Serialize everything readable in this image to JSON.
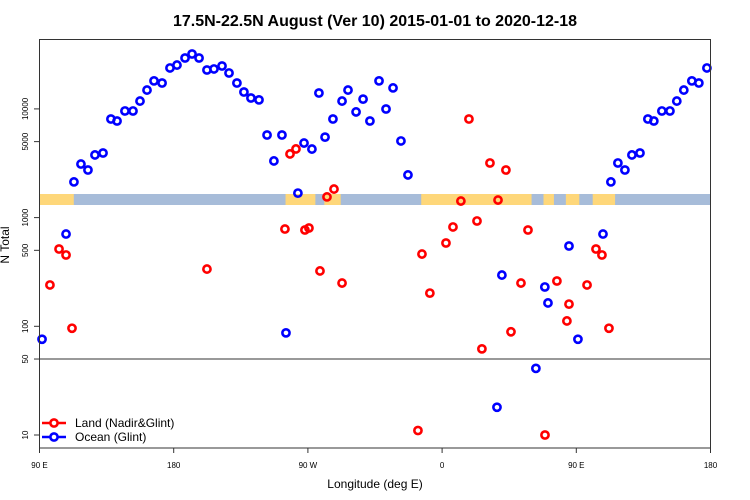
{
  "chart_data": {
    "type": "scatter",
    "title": "17.5N-22.5N August (Ver 10)   2015-01-01 to 2020-12-18",
    "xlabel": "Longitude (deg E)",
    "ylabel": "N Total",
    "x_note": "longitude unwrapped eastward from 90E",
    "xlim": [
      90,
      540
    ],
    "x_ticks": [
      {
        "value": 90,
        "label": "90 E"
      },
      {
        "value": 180,
        "label": "180"
      },
      {
        "value": 270,
        "label": "90 W"
      },
      {
        "value": 360,
        "label": "0"
      },
      {
        "value": 450,
        "label": "90 E"
      },
      {
        "value": 540,
        "label": "180"
      }
    ],
    "yscale": "log",
    "ylim": [
      7.6,
      43600
    ],
    "y_ticks": [
      {
        "value": 10000,
        "label": "10000"
      },
      {
        "value": 5000,
        "label": "5000"
      },
      {
        "value": 1000,
        "label": "1000"
      },
      {
        "value": 500,
        "label": "500"
      },
      {
        "value": 100,
        "label": "100"
      },
      {
        "value": 50,
        "label": "50"
      },
      {
        "value": 10,
        "label": "10"
      }
    ],
    "reference_line_y": 50,
    "legend_position": "bottom-left",
    "series": [
      {
        "name": "Land (Nadir&Glint)",
        "color": "#ff0000",
        "points": [
          [
            103.1,
            514
          ],
          [
            107.8,
            453
          ],
          [
            97.0,
            240
          ],
          [
            111.8,
            96
          ],
          [
            202.3,
            336
          ],
          [
            254.6,
            785
          ],
          [
            268.0,
            769
          ],
          [
            270.7,
            802
          ],
          [
            278.1,
            323
          ],
          [
            292.9,
            250
          ],
          [
            258.0,
            3850
          ],
          [
            262.0,
            4280
          ],
          [
            282.8,
            1550
          ],
          [
            287.5,
            1830
          ],
          [
            343.8,
            11
          ],
          [
            346.5,
            462
          ],
          [
            351.8,
            202
          ],
          [
            362.6,
            584
          ],
          [
            367.3,
            820
          ],
          [
            372.6,
            1420
          ],
          [
            378.0,
            8070
          ],
          [
            383.4,
            931
          ],
          [
            386.7,
            62
          ],
          [
            392.1,
            3180
          ],
          [
            397.5,
            1450
          ],
          [
            402.8,
            2740
          ],
          [
            406.2,
            89
          ],
          [
            412.9,
            250
          ],
          [
            417.6,
            769
          ],
          [
            429.0,
            10
          ],
          [
            437.0,
            261
          ],
          [
            443.7,
            112
          ],
          [
            445.1,
            160
          ],
          [
            457.2,
            240
          ],
          [
            463.2,
            514
          ],
          [
            467.2,
            453
          ],
          [
            471.9,
            96
          ]
        ]
      },
      {
        "name": "Ocean (Glint)",
        "color": "#0000ff",
        "points": [
          [
            113.1,
            2130
          ],
          [
            117.8,
            3110
          ],
          [
            122.5,
            2740
          ],
          [
            127.2,
            3770
          ],
          [
            132.6,
            3930
          ],
          [
            137.9,
            8070
          ],
          [
            142.0,
            7740
          ],
          [
            147.3,
            9570
          ],
          [
            152.7,
            9570
          ],
          [
            157.4,
            11800
          ],
          [
            162.1,
            14900
          ],
          [
            166.8,
            18100
          ],
          [
            172.2,
            17300
          ],
          [
            177.5,
            23800
          ],
          [
            182.2,
            25300
          ],
          [
            187.6,
            29400
          ],
          [
            192.3,
            32000
          ],
          [
            197.0,
            29400
          ],
          [
            202.3,
            22800
          ],
          [
            207.0,
            23300
          ],
          [
            212.4,
            24800
          ],
          [
            217.1,
            21400
          ],
          [
            222.4,
            17300
          ],
          [
            227.1,
            14300
          ],
          [
            231.8,
            12600
          ],
          [
            237.2,
            12100
          ],
          [
            242.6,
            5750
          ],
          [
            247.2,
            3320
          ],
          [
            252.6,
            5750
          ],
          [
            255.3,
            87
          ],
          [
            263.3,
            1680
          ],
          [
            267.4,
            4850
          ],
          [
            272.7,
            4270
          ],
          [
            277.4,
            14000
          ],
          [
            281.5,
            5500
          ],
          [
            286.8,
            8070
          ],
          [
            292.9,
            11800
          ],
          [
            296.9,
            14900
          ],
          [
            302.3,
            9380
          ],
          [
            307.0,
            12300
          ],
          [
            311.6,
            7740
          ],
          [
            317.7,
            18100
          ],
          [
            322.4,
            9980
          ],
          [
            327.1,
            15600
          ],
          [
            332.4,
            5070
          ],
          [
            337.1,
            2470
          ],
          [
            91.7,
            76
          ],
          [
            107.8,
            706
          ],
          [
            396.8,
            18
          ],
          [
            400.1,
            296
          ],
          [
            422.9,
            41
          ],
          [
            428.9,
            230
          ],
          [
            431.0,
            164
          ],
          [
            445.1,
            548
          ],
          [
            451.1,
            76
          ],
          [
            467.9,
            706
          ],
          [
            473.2,
            2130
          ],
          [
            477.9,
            3180
          ],
          [
            482.6,
            2740
          ],
          [
            487.3,
            3770
          ],
          [
            492.7,
            3930
          ],
          [
            498.0,
            8070
          ],
          [
            502.0,
            7740
          ],
          [
            507.4,
            9570
          ],
          [
            512.8,
            9570
          ],
          [
            517.4,
            11800
          ],
          [
            522.1,
            14900
          ],
          [
            527.5,
            18100
          ],
          [
            532.2,
            17300
          ],
          [
            537.6,
            23800
          ]
        ]
      }
    ],
    "map_strip": {
      "ocean_color": "#a7bcd9",
      "land_color": "#fed77a",
      "land_ranges": [
        [
          90,
          113
        ],
        [
          255,
          275
        ],
        [
          281,
          292
        ],
        [
          346,
          420
        ],
        [
          428,
          435
        ],
        [
          443,
          452
        ],
        [
          461,
          476
        ]
      ]
    }
  }
}
